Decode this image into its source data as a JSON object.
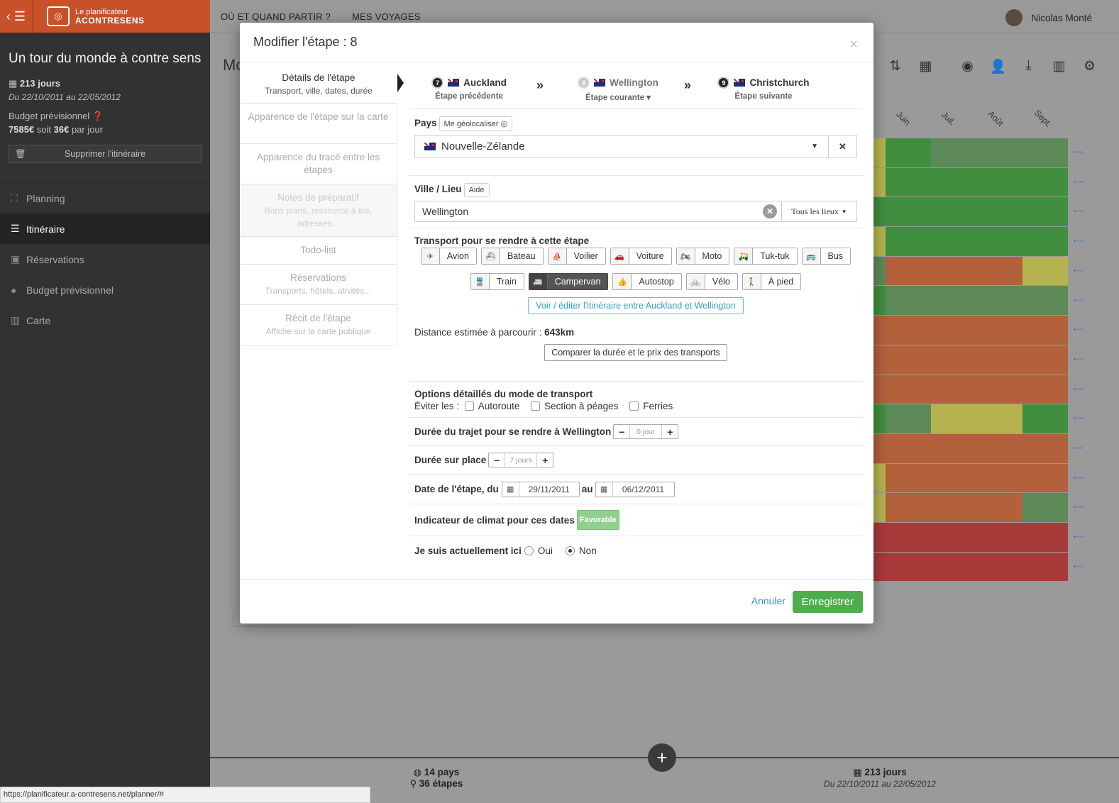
{
  "sidebar": {
    "logo_line1": "Le planificateur",
    "logo_line2": "ACONTRESENS",
    "trip_title": "Un tour du monde à contre sens",
    "days": "213 jours",
    "dates": "Du 22/10/2011 au 22/05/2012",
    "budget_label": "Budget prévisionnel",
    "budget_amount": "7585€",
    "budget_mid": " soit ",
    "budget_daily": "36€",
    "budget_suffix": " par jour",
    "delete_label": "Supprimer l'itinéraire",
    "nav": [
      {
        "label": "Planning",
        "icon": "sitemap-icon"
      },
      {
        "label": "Itinéraire",
        "icon": "route-icon"
      },
      {
        "label": "Réservations",
        "icon": "suitcase-icon"
      },
      {
        "label": "Budget prévisionnel",
        "icon": "piggy-bank-icon"
      },
      {
        "label": "Carte",
        "icon": "map-icon"
      }
    ]
  },
  "topbar": {
    "nav1": "OÙ ET QUAND PARTIR ?",
    "nav2": "MES VOYAGES",
    "user": "Nicolas Monté"
  },
  "background": {
    "title": "Mo",
    "months": [
      "Juin",
      "Juil.",
      "Août",
      "Sept."
    ],
    "dots": "···"
  },
  "bottom": {
    "countries": "14 pays",
    "steps": "36 étapes",
    "days": "213 jours",
    "dates": "Du 22/10/2011 au 22/05/2012",
    "fab": "+"
  },
  "status_url": "https://planificateur.a-contresens.net/planner/#",
  "modal": {
    "title": "Modifier l'étape : 8",
    "close": "×",
    "tabs": [
      {
        "title": "Détails de l'étape",
        "sub": "Transport, ville, dates, durée"
      },
      {
        "title": "Apparence de l'étape sur la carte",
        "sub": ""
      },
      {
        "title": "Apparence du tracé entre les étapes",
        "sub": ""
      },
      {
        "title": "Notes de préparatif",
        "sub": "Bons plans, ressource à lire, adresses..."
      },
      {
        "title": "Todo-list",
        "sub": ""
      },
      {
        "title": "Réservations",
        "sub": "Transports, hôtels, ativités..."
      },
      {
        "title": "Récit de l'étape",
        "sub": "Affiché sur la carte publique"
      }
    ],
    "steps": {
      "prev": {
        "num": "7",
        "name": "Auckland",
        "label": "Étape précédente"
      },
      "current": {
        "num": "8",
        "name": "Wellington",
        "label": "Étape courante ▾"
      },
      "next": {
        "num": "9",
        "name": "Christchurch",
        "label": "Étape suivante"
      },
      "sep": "»"
    },
    "pays_label": "Pays",
    "geoloc_label": "Me géolocaliser ◎",
    "country_value": "Nouvelle-Zélande",
    "ville_label": "Ville / Lieu",
    "aide_label": "Aide",
    "ville_value": "Wellington",
    "lieux_filter": "Tous les lieux",
    "transport_label": "Transport pour se rendre à cette étape",
    "transports_row1": [
      {
        "label": "Avion",
        "icon": "plane-icon",
        "glyph": "✈"
      },
      {
        "label": "Bateau",
        "icon": "ship-icon",
        "glyph": "⛴"
      },
      {
        "label": "Voilier",
        "icon": "sailboat-icon",
        "glyph": "⛵"
      },
      {
        "label": "Voiture",
        "icon": "car-icon",
        "glyph": "🚗"
      },
      {
        "label": "Moto",
        "icon": "motorcycle-icon",
        "glyph": "🏍"
      },
      {
        "label": "Tuk-tuk",
        "icon": "tuktuk-icon",
        "glyph": "🛺"
      },
      {
        "label": "Bus",
        "icon": "bus-icon",
        "glyph": "🚌"
      }
    ],
    "transports_row2": [
      {
        "label": "Train",
        "icon": "train-icon",
        "glyph": "🚆"
      },
      {
        "label": "Campervan",
        "icon": "campervan-icon",
        "glyph": "🚐"
      },
      {
        "label": "Autostop",
        "icon": "thumbs-up-icon",
        "glyph": "👍"
      },
      {
        "label": "Vélo",
        "icon": "bicycle-icon",
        "glyph": "🚲"
      },
      {
        "label": "À pied",
        "icon": "walking-icon",
        "glyph": "🚶"
      }
    ],
    "selected_transport": "Campervan",
    "itinerary_link": "Voir / éditer l'itinéraire entre Auckland et Wellington",
    "distance_label": "Distance estimée à parcourir : ",
    "distance_value": "643km",
    "compare_label": "Comparer la durée et le prix des transports",
    "options_label": "Options détaillés du mode de transport",
    "avoid_label": "Éviter les :",
    "avoid_options": [
      "Autoroute",
      "Section à péages",
      "Ferries"
    ],
    "trip_duration_label": "Durée du trajet pour se rendre à Wellington",
    "trip_duration_value": "0 jour",
    "stay_label": "Durée sur place",
    "stay_value": "7 jours",
    "date_label": "Date de l'étape, du",
    "date_from": "29/11/2011",
    "date_au": "au",
    "date_to": "06/12/2011",
    "climate_label": "Indicateur de climat pour ces dates",
    "climate_value": "Favorable",
    "here_label": "Je suis actuellement ici",
    "here_yes": "Oui",
    "here_no": "Non",
    "cancel": "Annuler",
    "save": "Enregistrer"
  },
  "colors": {
    "brand": "#c8512a",
    "save": "#4cae4c",
    "link": "#3a8fd8",
    "climate_green": "#8fd08f"
  }
}
